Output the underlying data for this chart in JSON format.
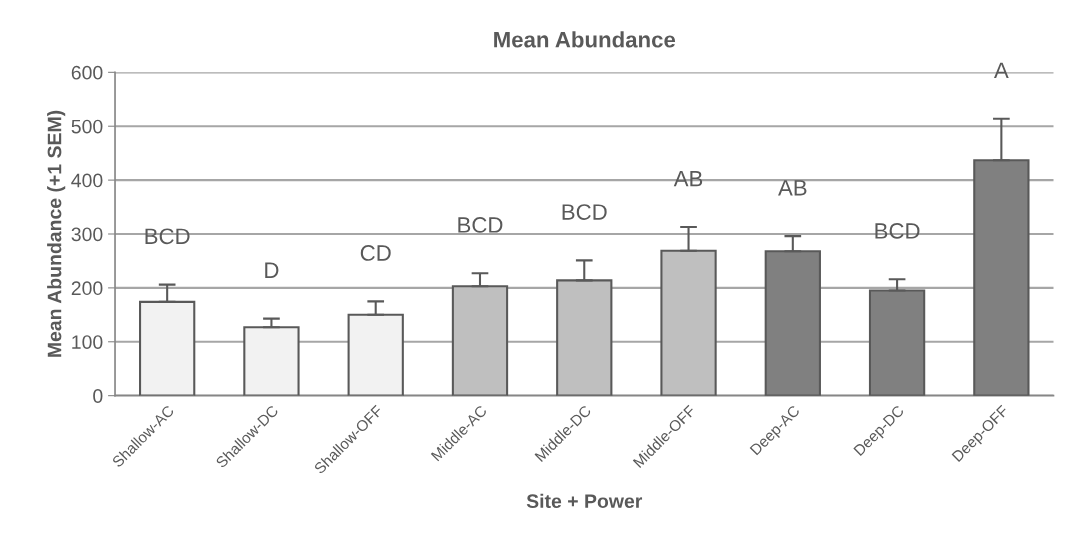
{
  "chart_data": {
    "type": "bar",
    "title": "Mean Abundance",
    "xlabel": "Site + Power",
    "ylabel": "Mean Abundance (+1 SEM)",
    "categories": [
      "Shallow-AC",
      "Shallow-DC",
      "Shallow-OFF",
      "Middle-AC",
      "Middle-DC",
      "Middle-OFF",
      "Deep-AC",
      "Deep-DC",
      "Deep-OFF"
    ],
    "values": [
      174,
      127,
      150,
      203,
      214,
      269,
      268,
      195,
      437
    ],
    "errors": [
      [
        174,
        206
      ],
      [
        127,
        143
      ],
      [
        150,
        175
      ],
      [
        203,
        227
      ],
      [
        214,
        251
      ],
      [
        269,
        313
      ],
      [
        268,
        296
      ],
      [
        195,
        216
      ],
      [
        437,
        514
      ]
    ],
    "colors": [
      "#f2f2f2",
      "#f2f2f2",
      "#f2f2f2",
      "#bfbfbf",
      "#bfbfbf",
      "#bfbfbf",
      "#808080",
      "#808080",
      "#808080"
    ],
    "ylim": [
      0,
      600
    ],
    "yticks": [
      0,
      100,
      200,
      300,
      400,
      500,
      600
    ],
    "grid": "y",
    "annotations": [
      "BCD",
      "D",
      "CD",
      "BCD",
      "BCD",
      "AB",
      "AB",
      "BCD",
      "A"
    ]
  }
}
